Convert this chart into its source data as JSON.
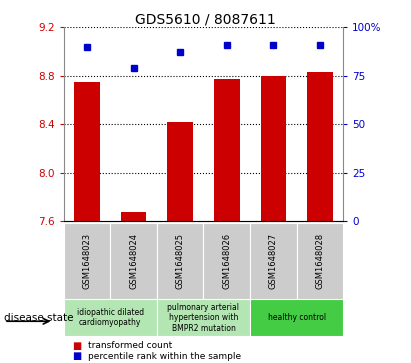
{
  "title": "GDS5610 / 8087611",
  "samples": [
    "GSM1648023",
    "GSM1648024",
    "GSM1648025",
    "GSM1648026",
    "GSM1648027",
    "GSM1648028"
  ],
  "transformed_count": [
    8.75,
    7.68,
    8.42,
    8.77,
    8.8,
    8.83
  ],
  "percentile_rank": [
    90,
    79,
    87,
    91,
    91,
    91
  ],
  "ylim_left": [
    7.6,
    9.2
  ],
  "ylim_right": [
    0,
    100
  ],
  "yticks_left": [
    7.6,
    8.0,
    8.4,
    8.8,
    9.2
  ],
  "yticks_right": [
    0,
    25,
    50,
    75,
    100
  ],
  "ytick_labels_right": [
    "0",
    "25",
    "50",
    "75",
    "100%"
  ],
  "bar_color": "#cc0000",
  "dot_color": "#0000cc",
  "grid_color": "#000000",
  "disease_groups": [
    {
      "label": "idiopathic dilated\ncardiomyopathy",
      "color": "#b3e6b3"
    },
    {
      "label": "pulmonary arterial\nhypertension with\nBMPR2 mutation",
      "color": "#b3e6b3"
    },
    {
      "label": "healthy control",
      "color": "#44cc44"
    }
  ],
  "group_ranges": [
    [
      0,
      2
    ],
    [
      2,
      4
    ],
    [
      4,
      6
    ]
  ],
  "legend_bar_label": "transformed count",
  "legend_dot_label": "percentile rank within the sample",
  "disease_state_label": "disease state",
  "left_tick_color": "#cc0000",
  "right_tick_color": "#0000cc"
}
